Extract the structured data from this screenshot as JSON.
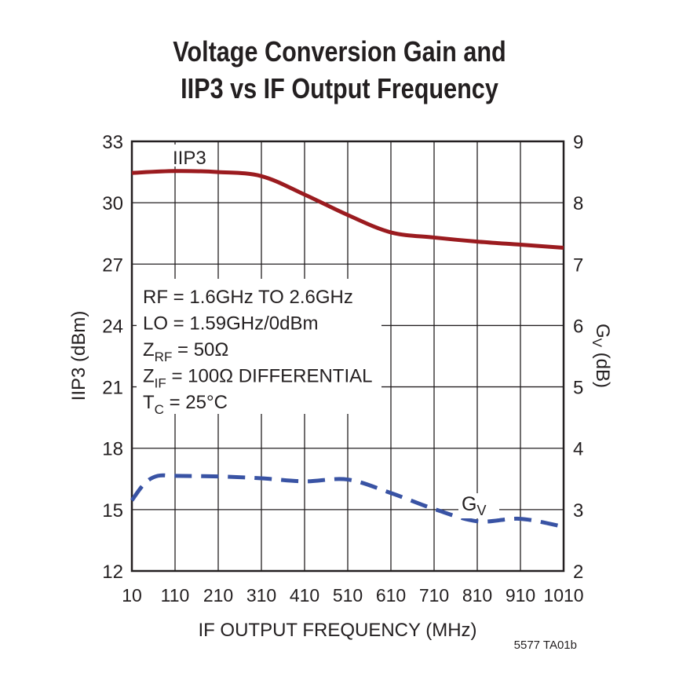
{
  "chart_data": {
    "type": "line",
    "title": [
      "Voltage Conversion Gain and",
      "IIP3 vs IF Output Frequency"
    ],
    "xlabel": "IF OUTPUT FREQUENCY (MHz)",
    "ylabel": "IIP3 (dBm)",
    "y2label": "GV (dB)",
    "xlim": [
      10,
      1010
    ],
    "ylim": [
      12,
      33
    ],
    "y2lim": [
      2,
      9
    ],
    "xticks": [
      10,
      110,
      210,
      310,
      410,
      510,
      610,
      710,
      810,
      910,
      1010
    ],
    "yticks": [
      12,
      15,
      18,
      21,
      24,
      27,
      30,
      33
    ],
    "y2ticks": [
      2,
      3,
      4,
      5,
      6,
      7,
      8,
      9
    ],
    "grid": true,
    "annotations": [
      {
        "main": "RF = 1.6GHz TO 2.6GHz"
      },
      {
        "main": "LO = 1.59GHz/0dBm"
      },
      {
        "main": "Z",
        "sub": "RF",
        "rest": " = 50Ω"
      },
      {
        "main": "Z",
        "sub": "IF",
        "rest": " = 100Ω DIFFERENTIAL"
      },
      {
        "main": "T",
        "sub": "C",
        "rest": " = 25°C"
      }
    ],
    "series": [
      {
        "name": "IIP3",
        "axis": "left",
        "color": "#9b1b1f",
        "style": "solid",
        "x": [
          10,
          110,
          210,
          310,
          410,
          510,
          610,
          710,
          810,
          910,
          1010
        ],
        "y": [
          31.46,
          31.55,
          31.5,
          31.3,
          30.4,
          29.4,
          28.55,
          28.3,
          28.1,
          27.95,
          27.8
        ]
      },
      {
        "name": "GV",
        "axis": "right",
        "color": "#3953a4",
        "style": "dashed",
        "x": [
          10,
          40,
          70,
          110,
          210,
          310,
          410,
          510,
          610,
          710,
          810,
          910,
          1010
        ],
        "y": [
          3.15,
          3.43,
          3.55,
          3.55,
          3.54,
          3.51,
          3.46,
          3.49,
          3.27,
          3.01,
          2.81,
          2.85,
          2.72
        ]
      }
    ],
    "series_labels": {
      "iip3": "IIP3",
      "gv_main": "G",
      "gv_sub": "V"
    },
    "y2label_main": "G",
    "y2label_sub": "V",
    "y2label_rest": " (dB)",
    "footnote": "5577 TA01b"
  }
}
